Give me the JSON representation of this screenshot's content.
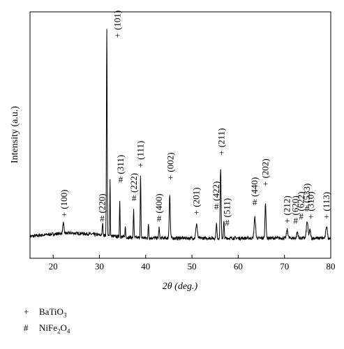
{
  "chart_data": {
    "type": "line",
    "xlabel": "2θ (deg.)",
    "ylabel": "Intensity (a.u.)",
    "xlim": [
      15,
      80
    ],
    "xticks": [
      20,
      30,
      40,
      50,
      60,
      70,
      80
    ],
    "y_ticks_shown": false,
    "grid": false,
    "series": [
      {
        "style": "black line",
        "baseline": 6,
        "peaks": [
          {
            "x": 22.2,
            "y": 5,
            "w": 0.18
          },
          {
            "x": 30.7,
            "y": 6,
            "w": 0.12
          },
          {
            "x": 31.6,
            "y": 100,
            "w": 0.11
          },
          {
            "x": 32.3,
            "y": 28,
            "w": 0.08
          },
          {
            "x": 34.4,
            "y": 18,
            "w": 0.09
          },
          {
            "x": 35.6,
            "y": 5,
            "w": 0.1
          },
          {
            "x": 37.4,
            "y": 14,
            "w": 0.1
          },
          {
            "x": 38.9,
            "y": 30,
            "w": 0.1
          },
          {
            "x": 40.6,
            "y": 7,
            "w": 0.1
          },
          {
            "x": 42.9,
            "y": 5,
            "w": 0.12
          },
          {
            "x": 45.2,
            "y": 21,
            "w": 0.16
          },
          {
            "x": 51.0,
            "y": 7,
            "w": 0.22
          },
          {
            "x": 55.3,
            "y": 7,
            "w": 0.14
          },
          {
            "x": 56.2,
            "y": 34,
            "w": 0.14
          },
          {
            "x": 56.9,
            "y": 8,
            "w": 0.12
          },
          {
            "x": 63.6,
            "y": 10,
            "w": 0.22
          },
          {
            "x": 65.9,
            "y": 17,
            "w": 0.16
          },
          {
            "x": 70.6,
            "y": 4,
            "w": 0.22
          },
          {
            "x": 72.8,
            "y": 3,
            "w": 0.2
          },
          {
            "x": 74.9,
            "y": 8,
            "w": 0.24
          },
          {
            "x": 75.5,
            "y": 4,
            "w": 0.2
          },
          {
            "x": 79.1,
            "y": 6,
            "w": 0.22
          }
        ]
      }
    ],
    "annotations": [
      {
        "x": 22.4,
        "y": 13,
        "symbol": "+",
        "hkl": "(100)"
      },
      {
        "x": 30.6,
        "y": 11,
        "symbol": "#",
        "hkl": "(220)"
      },
      {
        "x": 33.9,
        "y": 100,
        "symbol": "+",
        "hkl": "(101)"
      },
      {
        "x": 34.6,
        "y": 30,
        "symbol": "#",
        "hkl": "(311)"
      },
      {
        "x": 37.5,
        "y": 21,
        "symbol": "#",
        "hkl": "(222)"
      },
      {
        "x": 38.9,
        "y": 37,
        "symbol": "+",
        "hkl": "(111)"
      },
      {
        "x": 42.9,
        "y": 11,
        "symbol": "#",
        "hkl": "(400)"
      },
      {
        "x": 45.4,
        "y": 31,
        "symbol": "+",
        "hkl": "(002)"
      },
      {
        "x": 51.0,
        "y": 14,
        "symbol": "+",
        "hkl": "(201)"
      },
      {
        "x": 55.3,
        "y": 17,
        "symbol": "#",
        "hkl": "(422)"
      },
      {
        "x": 56.4,
        "y": 43,
        "symbol": "+",
        "hkl": "(211)"
      },
      {
        "x": 57.6,
        "y": 9,
        "symbol": "#",
        "hkl": "(511)"
      },
      {
        "x": 63.6,
        "y": 19,
        "symbol": "#",
        "hkl": "(440)"
      },
      {
        "x": 65.9,
        "y": 28,
        "symbol": "+",
        "hkl": "(202)"
      },
      {
        "x": 70.6,
        "y": 10,
        "symbol": "+",
        "hkl": "(212)"
      },
      {
        "x": 72.4,
        "y": 10,
        "symbol": "#",
        "hkl": "(620)"
      },
      {
        "x": 73.6,
        "y": 12,
        "symbol": "#",
        "hkl": "(622)"
      },
      {
        "x": 74.9,
        "y": 16,
        "symbol": "#",
        "hkl": "(533)"
      },
      {
        "x": 75.7,
        "y": 12,
        "symbol": "+",
        "hkl": "(310)"
      },
      {
        "x": 79.1,
        "y": 12,
        "symbol": "+",
        "hkl": "(113)"
      }
    ],
    "legend": [
      {
        "symbol": "+",
        "label": "BaTiO",
        "sub": "3"
      },
      {
        "symbol": "#",
        "label": "NiFe",
        "sub": "2",
        "label2": "O",
        "sub2": "4"
      }
    ],
    "legend_position": "below plot, left"
  }
}
